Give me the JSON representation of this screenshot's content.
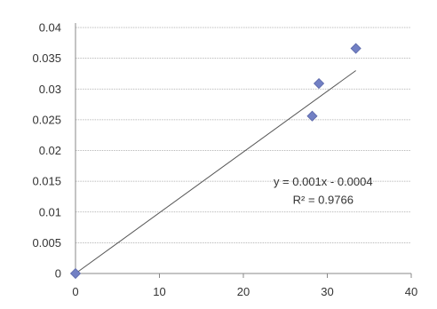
{
  "chart_data": {
    "type": "scatter",
    "title": "",
    "xlabel": "",
    "ylabel": "",
    "xlim": [
      0,
      40
    ],
    "ylim": [
      0,
      0.04
    ],
    "x_ticks": [
      0,
      10,
      20,
      30,
      40
    ],
    "y_ticks": [
      0,
      0.005,
      0.01,
      0.015,
      0.02,
      0.025,
      0.03,
      0.035,
      0.04
    ],
    "x_tick_labels": [
      "0",
      "10",
      "20",
      "30",
      "40"
    ],
    "y_tick_labels": [
      "0",
      "0.005",
      "0.01",
      "0.015",
      "0.02",
      "0.025",
      "0.03",
      "0.035",
      "0.04"
    ],
    "grid": "horizontal",
    "marker": "diamond",
    "marker_color": "#7280c4",
    "series": [
      {
        "points": [
          {
            "x": 0,
            "y": 0
          },
          {
            "x": 28.2,
            "y": 0.0256
          },
          {
            "x": 29,
            "y": 0.0309
          },
          {
            "x": 33.4,
            "y": 0.0366
          }
        ]
      }
    ],
    "trendline": {
      "type": "linear",
      "slope": 0.001,
      "intercept": -0.0004,
      "x_range": [
        0,
        33.4
      ],
      "color": "#555555",
      "equation": "y = 0.001x - 0.0004",
      "r_squared": "R² = 0.9766"
    }
  }
}
